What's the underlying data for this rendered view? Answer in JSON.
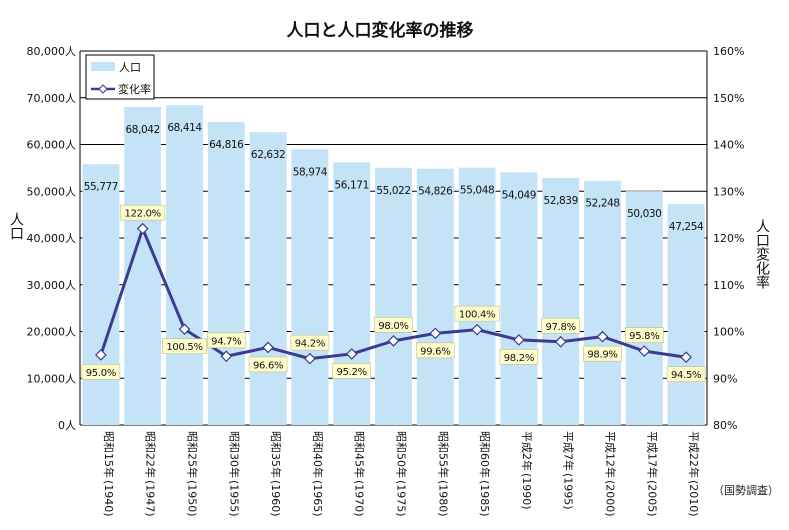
{
  "chart_data": {
    "type": "bar+line",
    "title": "人口と人口変化率の推移",
    "ylabel_left": "人口",
    "ylabel_right": "人口変化率",
    "ylim_left": [
      0,
      80000
    ],
    "ylim_right": [
      80,
      160
    ],
    "yticks_left": [
      "0人",
      "10,000人",
      "20,000人",
      "30,000人",
      "40,000人",
      "50,000人",
      "60,000人",
      "70,000人",
      "80,000人"
    ],
    "yticks_right": [
      "80%",
      "90%",
      "100%",
      "110%",
      "120%",
      "130%",
      "140%",
      "150%",
      "160%"
    ],
    "grid": true,
    "legend": [
      {
        "name": "人口",
        "kind": "bar"
      },
      {
        "name": "変化率",
        "kind": "line"
      }
    ],
    "legend_position": "top-left",
    "categories": [
      {
        "era": "昭和15年",
        "year": "(1940)"
      },
      {
        "era": "昭和22年",
        "year": "(1947)"
      },
      {
        "era": "昭和25年",
        "year": "(1950)"
      },
      {
        "era": "昭和30年",
        "year": "(1955)"
      },
      {
        "era": "昭和35年",
        "year": "(1960)"
      },
      {
        "era": "昭和40年",
        "year": "(1965)"
      },
      {
        "era": "昭和45年",
        "year": "(1970)"
      },
      {
        "era": "昭和50年",
        "year": "(1975)"
      },
      {
        "era": "昭和55年",
        "year": "(1980)"
      },
      {
        "era": "昭和60年",
        "year": "(1985)"
      },
      {
        "era": "平成2年",
        "year": "(1990)"
      },
      {
        "era": "平成7年",
        "year": "(1995)"
      },
      {
        "era": "平成12年",
        "year": "(2000)"
      },
      {
        "era": "平成17年",
        "year": "(2005)"
      },
      {
        "era": "平成22年",
        "year": "(2010)"
      }
    ],
    "series": [
      {
        "name": "人口",
        "values": [
          55777,
          68042,
          68414,
          64816,
          62632,
          58974,
          56171,
          55022,
          54826,
          55048,
          54049,
          52839,
          52248,
          50030,
          47254
        ],
        "labels": [
          "55,777",
          "68,042",
          "68,414",
          "64,816",
          "62,632",
          "58,974",
          "56,171",
          "55,022",
          "54,826",
          "55,048",
          "54,049",
          "52,839",
          "52,248",
          "50,030",
          "47,254"
        ]
      },
      {
        "name": "変化率",
        "values": [
          95.0,
          122.0,
          100.5,
          94.7,
          96.6,
          94.2,
          95.2,
          98.0,
          99.6,
          100.4,
          98.2,
          97.8,
          98.9,
          95.8,
          94.5
        ],
        "labels": [
          "95.0%",
          "122.0%",
          "100.5%",
          "94.7%",
          "96.6%",
          "94.2%",
          "95.2%",
          "98.0%",
          "99.6%",
          "100.4%",
          "98.2%",
          "97.8%",
          "98.9%",
          "95.8%",
          "94.5%"
        ]
      }
    ],
    "source_note": "（国勢調査）",
    "colors": {
      "bar": "#c5e3f6",
      "line": "#3b3b8f",
      "marker_fill": "#ffffff",
      "label_box": "#fffccc",
      "grid": "#000000"
    }
  }
}
